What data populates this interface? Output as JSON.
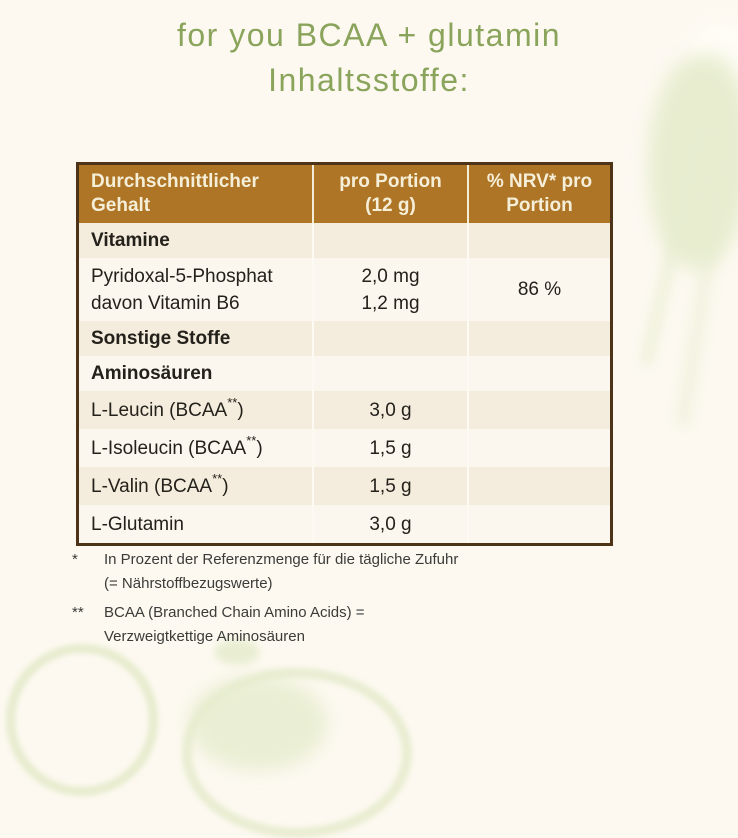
{
  "title": {
    "line1": "for you BCAA + glutamin",
    "line2": "Inhaltsstoffe:"
  },
  "table": {
    "columns": [
      {
        "label": "Durchschnittlicher Gehalt"
      },
      {
        "label": "pro Portion (12 g)"
      },
      {
        "label": "% NRV* pro Portion"
      }
    ],
    "rows": [
      {
        "kind": "section",
        "label": "Vitamine"
      },
      {
        "kind": "data",
        "lines": [
          {
            "label": "Pyridoxal-5-Phosphat",
            "amount": "2,0 mg"
          },
          {
            "label": "davon Vitamin B6",
            "amount": "1,2 mg"
          }
        ],
        "nrv": "86 %"
      },
      {
        "kind": "section",
        "label": "Sonstige Stoffe"
      },
      {
        "kind": "section",
        "label": "Aminosäuren"
      },
      {
        "kind": "data",
        "lines": [
          {
            "label": "L-Leucin (BCAA**)",
            "amount": "3,0 g"
          }
        ],
        "nrv": ""
      },
      {
        "kind": "data",
        "lines": [
          {
            "label": "L-Isoleucin (BCAA**)",
            "amount": "1,5 g"
          }
        ],
        "nrv": ""
      },
      {
        "kind": "data",
        "lines": [
          {
            "label": "L-Valin (BCAA**)",
            "amount": "1,5 g"
          }
        ],
        "nrv": ""
      },
      {
        "kind": "data",
        "lines": [
          {
            "label": "L-Glutamin",
            "amount": "3,0 g"
          }
        ],
        "nrv": ""
      }
    ]
  },
  "footnotes": [
    {
      "marker": "*",
      "text": "In Prozent der Referenzmenge für die tägliche Zufuhr (= Nährstoffbezugswerte)"
    },
    {
      "marker": "**",
      "text": "BCAA (Branched Chain Amino Acids) = Verzweigtkettige Aminosäuren"
    }
  ],
  "colors": {
    "page_bg": "#fdf9f1",
    "title_green": "#8aa45c",
    "header_bg": "#ae7527",
    "header_text": "#f6efd8",
    "table_border": "#4d3418",
    "row_dark": "#f4edde",
    "row_light": "#fbf7ee",
    "body_text": "#24211b",
    "footnote_text": "#3b3b38",
    "deco_fill": "#e7edcf",
    "deco_line": "#e2e9c6"
  }
}
